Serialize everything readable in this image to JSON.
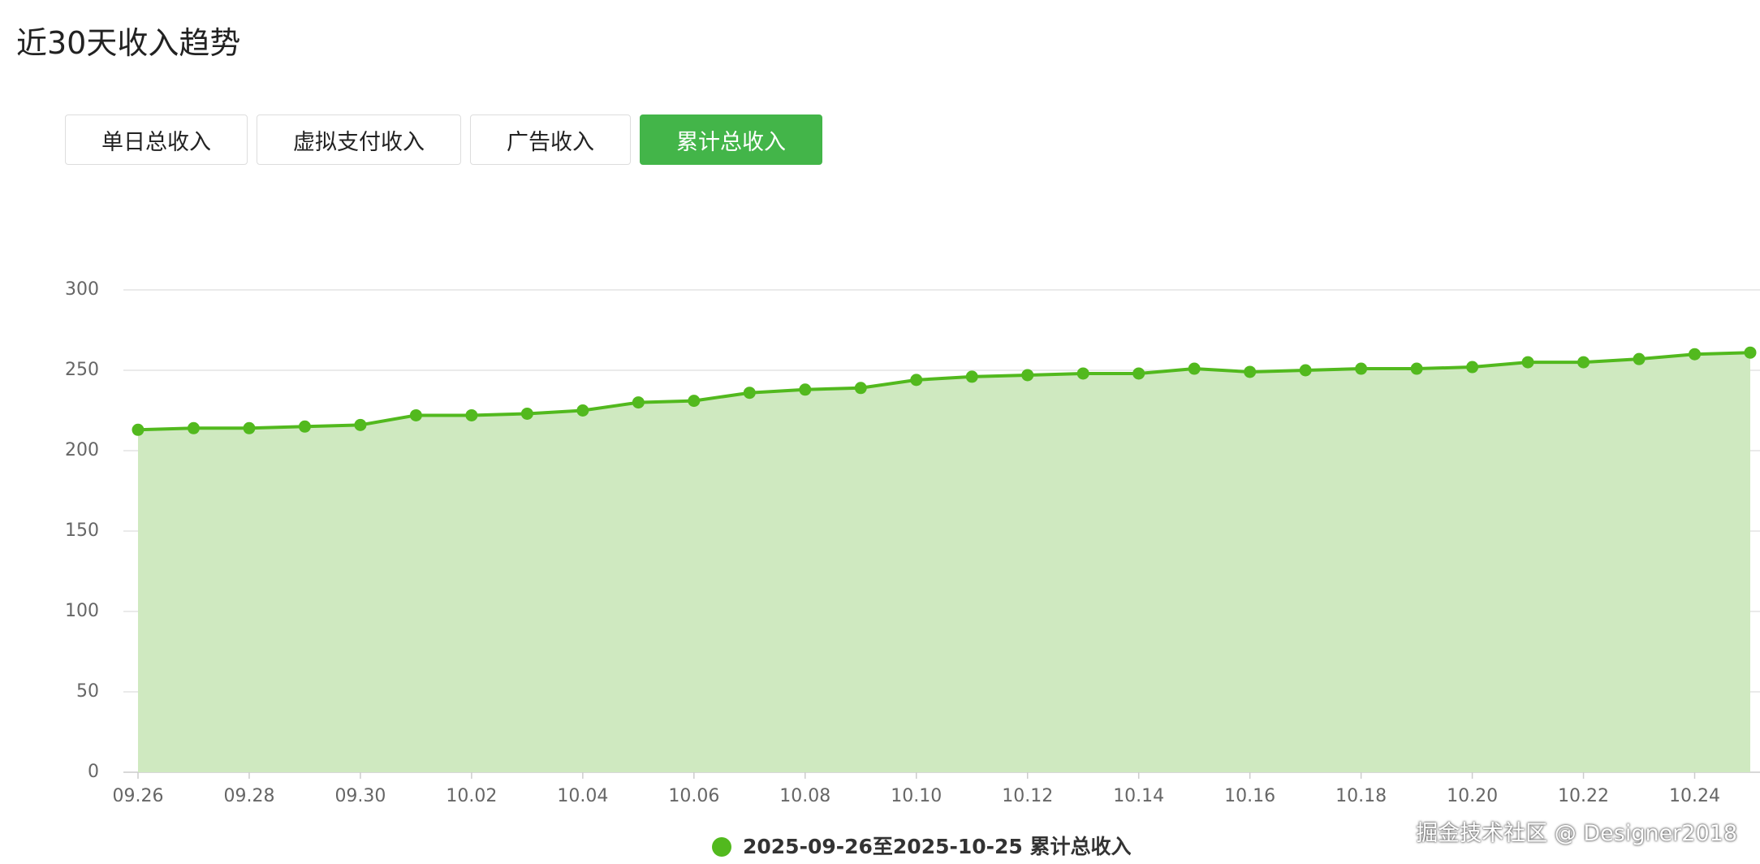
{
  "header": {
    "title": "近30天收入趋势"
  },
  "tabs": {
    "items": [
      "单日总收入",
      "虚拟支付收入",
      "广告收入",
      "累计总收入"
    ],
    "active": 3
  },
  "watermark": "掘金技术社区 @ Designer2018",
  "chart_data": {
    "type": "area",
    "categories": [
      "09.26",
      null,
      "09.28",
      null,
      "09.30",
      null,
      "10.02",
      null,
      "10.04",
      null,
      "10.06",
      null,
      "10.08",
      null,
      "10.10",
      null,
      "10.12",
      null,
      "10.14",
      null,
      "10.16",
      null,
      "10.18",
      null,
      "10.20",
      null,
      "10.22",
      null,
      "10.24",
      null
    ],
    "series": [
      {
        "name": "2025-09-26至2025-10-25 累计总收入",
        "color": "#52b91e",
        "fill_color": "#cfe9c0",
        "values": [
          213,
          214,
          214,
          215,
          216,
          222,
          222,
          223,
          225,
          230,
          231,
          236,
          238,
          239,
          244,
          246,
          247,
          248,
          248,
          251,
          249,
          250,
          251,
          251,
          252,
          255,
          255,
          257,
          260,
          261
        ]
      }
    ],
    "ylim": [
      0,
      300
    ],
    "yticks": [
      0,
      50,
      100,
      150,
      200,
      250,
      300
    ],
    "grid": true,
    "legend": "bottom"
  }
}
